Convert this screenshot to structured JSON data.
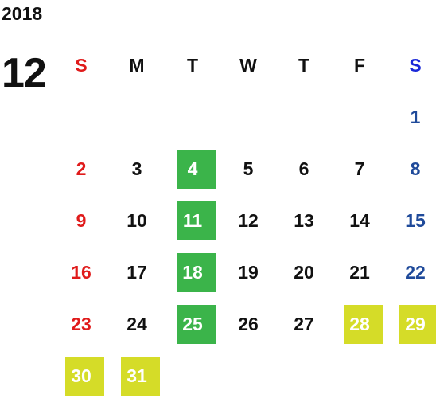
{
  "calendar": {
    "year": "2018",
    "month": "12",
    "weekdays": [
      "S",
      "M",
      "T",
      "W",
      "T",
      "F",
      "S"
    ],
    "weeks": [
      [
        "",
        "",
        "",
        "",
        "",
        "",
        "1"
      ],
      [
        "2",
        "3",
        "4",
        "5",
        "6",
        "7",
        "8"
      ],
      [
        "9",
        "10",
        "11",
        "12",
        "13",
        "14",
        "15"
      ],
      [
        "16",
        "17",
        "18",
        "19",
        "20",
        "21",
        "22"
      ],
      [
        "23",
        "24",
        "25",
        "26",
        "27",
        "28",
        "29"
      ],
      [
        "30",
        "31",
        "",
        "",
        "",
        "",
        ""
      ]
    ],
    "highlight_green": [
      "4",
      "11",
      "18",
      "25"
    ],
    "highlight_yellow": [
      "28",
      "29",
      "30",
      "31"
    ],
    "colors": {
      "sunday": "#e01b1b",
      "saturday_header": "#1a28d8",
      "saturday": "#1f4a9a",
      "green": "#3bb44a",
      "yellow": "#d5dc28"
    }
  }
}
